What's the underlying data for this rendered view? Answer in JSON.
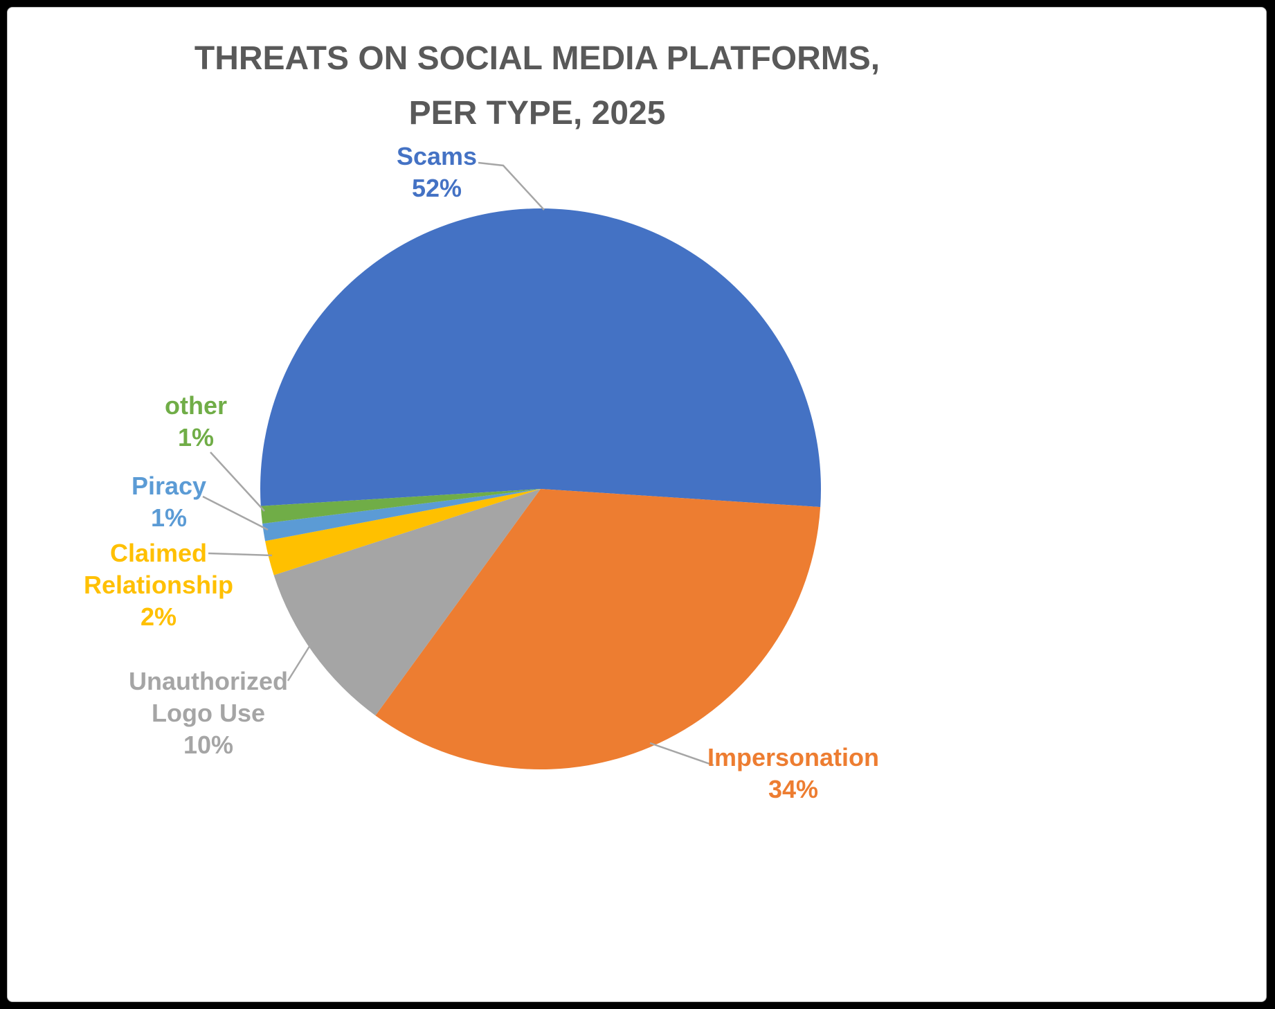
{
  "title": {
    "line1": "THREATS ON SOCIAL MEDIA PLATFORMS,",
    "line2": "PER TYPE, 2025"
  },
  "chart_data": {
    "type": "pie",
    "title": "THREATS ON SOCIAL MEDIA PLATFORMS, PER TYPE, 2025",
    "unit": "percent",
    "direction": "clockwise",
    "start_angle_deg_clockwise_from_top": 266.5,
    "legend_position": "none",
    "data_label_style": "category name and percentage outside slices with gray leader lines",
    "slices": [
      {
        "label": "Scams",
        "value": 52,
        "value_display": "52%",
        "color": "#4472C4"
      },
      {
        "label": "Impersonation",
        "value": 34,
        "value_display": "34%",
        "color": "#ED7D31"
      },
      {
        "label": "Unauthorized Logo Use",
        "value": 10,
        "value_display": "10%",
        "color": "#A5A5A5"
      },
      {
        "label": "Claimed Relationship",
        "value": 2,
        "value_display": "2%",
        "color": "#FFC000"
      },
      {
        "label": "Piracy",
        "value": 1,
        "value_display": "1%",
        "color": "#5B9BD5"
      },
      {
        "label": "other",
        "value": 1,
        "value_display": "1%",
        "color": "#70AD47"
      }
    ]
  },
  "colors": {
    "title_text": "#595959",
    "leader_line": "#A6A6A6",
    "page_background": "#000000",
    "card_background": "#FFFFFF"
  }
}
